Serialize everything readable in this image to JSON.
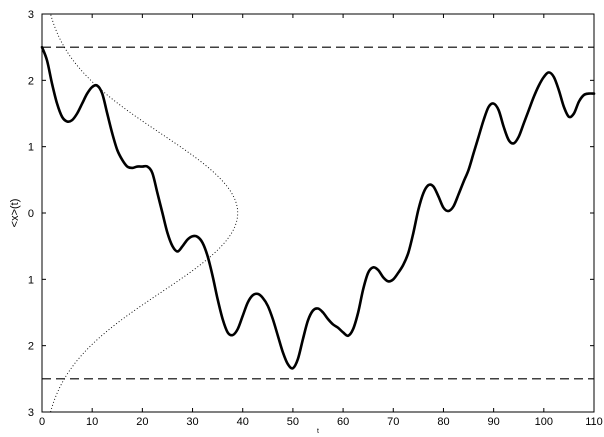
{
  "chart_data": {
    "type": "line",
    "title": "",
    "xlabel": "t",
    "ylabel": "<x>(t)",
    "xlim": [
      0,
      110
    ],
    "ylim": [
      -3,
      3
    ],
    "grid": false,
    "legend": "none",
    "x_ticks": [
      0,
      10,
      20,
      30,
      40,
      50,
      60,
      70,
      80,
      90,
      100,
      110
    ],
    "x_tick_labels": [
      "0",
      "10",
      "20",
      "30",
      "40",
      "50",
      "60",
      "70",
      "80",
      "90",
      "100",
      "110"
    ],
    "y_ticks": [
      -3,
      -2,
      -1,
      0,
      1,
      2,
      3
    ],
    "y_tick_labels": [
      "3",
      "2",
      "1",
      "0",
      "1",
      "2",
      "3"
    ],
    "series": [
      {
        "style": "solid-thick",
        "color": "#000000",
        "x": [
          0,
          1,
          2,
          3,
          4,
          5,
          6,
          7,
          8,
          9,
          10,
          11,
          12,
          13,
          14,
          15,
          16,
          17,
          18,
          19,
          20,
          21,
          22,
          23,
          24,
          25,
          26,
          27,
          28,
          29,
          30,
          31,
          32,
          33,
          34,
          35,
          36,
          37,
          38,
          39,
          40,
          41,
          42,
          43,
          44,
          45,
          46,
          47,
          48,
          49,
          50,
          51,
          52,
          53,
          54,
          55,
          56,
          57,
          58,
          59,
          60,
          61,
          62,
          63,
          64,
          65,
          66,
          67,
          68,
          69,
          70,
          71,
          72,
          73,
          74,
          75,
          76,
          77,
          78,
          79,
          80,
          81,
          82,
          83,
          84,
          85,
          86,
          87,
          88,
          89,
          90,
          91,
          92,
          93,
          94,
          95,
          96,
          97,
          98,
          99,
          100,
          101,
          102,
          103,
          104,
          105,
          106,
          107,
          108,
          109,
          110
        ],
        "y": [
          2.5,
          2.3,
          1.95,
          1.65,
          1.45,
          1.38,
          1.4,
          1.5,
          1.65,
          1.8,
          1.9,
          1.92,
          1.8,
          1.5,
          1.2,
          0.95,
          0.8,
          0.7,
          0.68,
          0.7,
          0.7,
          0.7,
          0.6,
          0.3,
          0.0,
          -0.3,
          -0.5,
          -0.58,
          -0.5,
          -0.4,
          -0.35,
          -0.36,
          -0.45,
          -0.65,
          -0.95,
          -1.3,
          -1.6,
          -1.8,
          -1.84,
          -1.75,
          -1.55,
          -1.35,
          -1.24,
          -1.22,
          -1.28,
          -1.4,
          -1.6,
          -1.85,
          -2.1,
          -2.28,
          -2.34,
          -2.2,
          -1.9,
          -1.62,
          -1.47,
          -1.44,
          -1.5,
          -1.6,
          -1.68,
          -1.73,
          -1.8,
          -1.85,
          -1.75,
          -1.5,
          -1.15,
          -0.9,
          -0.82,
          -0.86,
          -0.97,
          -1.03,
          -1.0,
          -0.9,
          -0.78,
          -0.6,
          -0.3,
          0.05,
          0.3,
          0.42,
          0.4,
          0.25,
          0.08,
          0.03,
          0.1,
          0.28,
          0.47,
          0.65,
          0.9,
          1.15,
          1.4,
          1.6,
          1.65,
          1.55,
          1.3,
          1.1,
          1.05,
          1.15,
          1.35,
          1.55,
          1.75,
          1.92,
          2.05,
          2.12,
          2.05,
          1.85,
          1.6,
          1.45,
          1.5,
          1.68,
          1.78,
          1.8,
          1.8
        ]
      },
      {
        "style": "dotted",
        "color": "#000000",
        "x": [
          0,
          1,
          2,
          3,
          4,
          5,
          6,
          7,
          8,
          9,
          10,
          11,
          12,
          13,
          14,
          15,
          16,
          17,
          18,
          19,
          20,
          21,
          22,
          23,
          24,
          25,
          26,
          27,
          28,
          29,
          30,
          31,
          32,
          33,
          34,
          35,
          36,
          37,
          38,
          39,
          40
        ],
        "y": [
          -2.98,
          -3.0,
          -2.9,
          -2.78,
          -2.65,
          -2.55,
          -2.45,
          -2.32,
          -2.2,
          -2.1,
          -2.0,
          -1.9,
          -1.8,
          -1.7,
          -1.6,
          -1.5,
          -1.38,
          -1.27,
          -1.15,
          -1.05,
          -0.95,
          -0.85,
          -0.75,
          -0.65,
          -0.55,
          -0.45,
          -0.34,
          -0.22,
          -0.1,
          0.02,
          0.14,
          0.26,
          0.38,
          0.5,
          0.62,
          0.74,
          0.86,
          0.98,
          1.1,
          1.22,
          1.34
        ]
      },
      {
        "style": "dashed",
        "color": "#000000",
        "x": [
          0,
          110
        ],
        "y": [
          2.5,
          2.5
        ]
      },
      {
        "style": "dashed",
        "color": "#000000",
        "x": [
          0,
          110
        ],
        "y": [
          -2.5,
          -2.5
        ]
      }
    ],
    "dotted_gaussian": {
      "mu": 0,
      "sigma": 1.2,
      "peak_x": 39,
      "ylim": [
        -3,
        3
      ]
    }
  }
}
